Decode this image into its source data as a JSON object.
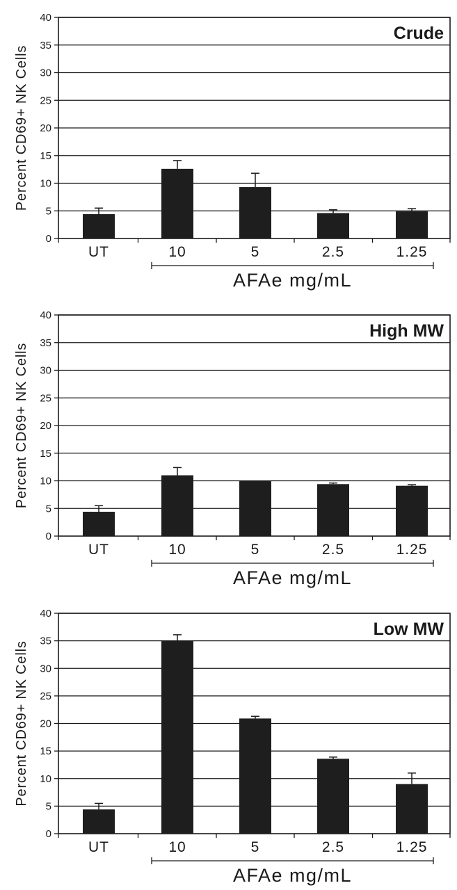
{
  "chart_data": [
    {
      "type": "bar",
      "title": "Crude",
      "ylabel": "Percent CD69+ NK Cells",
      "xlabel": "AFAe mg/mL",
      "categories": [
        "UT",
        "10",
        "5",
        "2.5",
        "1.25"
      ],
      "values": [
        4.4,
        12.6,
        9.3,
        4.6,
        4.9
      ],
      "errors": [
        1.1,
        1.5,
        2.5,
        0.6,
        0.5
      ],
      "ylim": [
        0,
        40
      ],
      "yticks": [
        "0",
        "5",
        "10",
        "15",
        "20",
        "25",
        "30",
        "35",
        "40"
      ],
      "grid": true
    },
    {
      "type": "bar",
      "title": "High MW",
      "ylabel": "Percent CD69+ NK Cells",
      "xlabel": "AFAe mg/mL",
      "categories": [
        "UT",
        "10",
        "5",
        "2.5",
        "1.25"
      ],
      "values": [
        4.4,
        11.0,
        10.0,
        9.4,
        9.1
      ],
      "errors": [
        1.1,
        1.4,
        0,
        0.2,
        0.2
      ],
      "ylim": [
        0,
        40
      ],
      "yticks": [
        "0",
        "5",
        "10",
        "15",
        "20",
        "25",
        "30",
        "35",
        "40"
      ],
      "grid": true
    },
    {
      "type": "bar",
      "title": "Low MW",
      "ylabel": "Percent CD69+ NK Cells",
      "xlabel": "AFAe mg/mL",
      "categories": [
        "UT",
        "10",
        "5",
        "2.5",
        "1.25"
      ],
      "values": [
        4.4,
        35.0,
        20.9,
        13.6,
        9.0
      ],
      "errors": [
        1.1,
        1.1,
        0.4,
        0.3,
        2.0
      ],
      "ylim": [
        0,
        40
      ],
      "yticks": [
        "0",
        "5",
        "10",
        "15",
        "20",
        "25",
        "30",
        "35",
        "40"
      ],
      "grid": true
    }
  ],
  "colors": {
    "bar": "#1e1e1e",
    "axis": "#1a1a1a",
    "grid": "#1a1a1a"
  }
}
